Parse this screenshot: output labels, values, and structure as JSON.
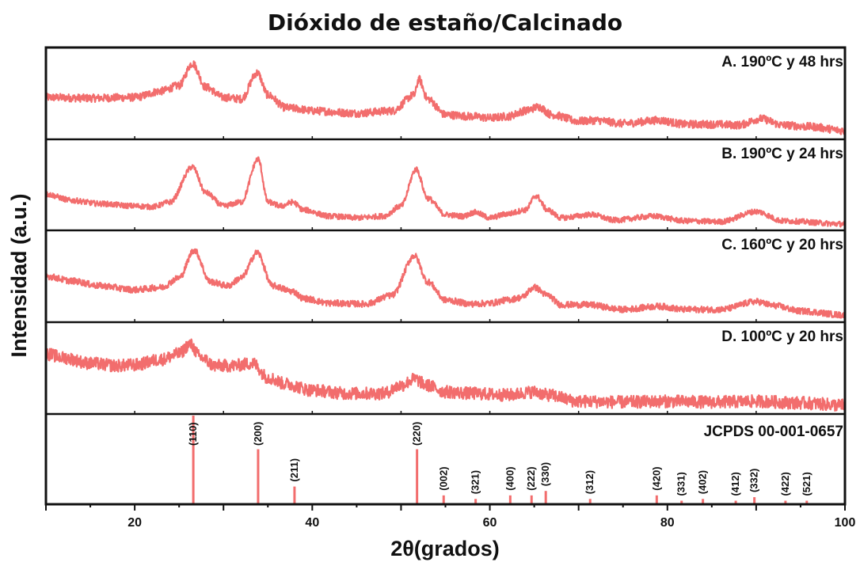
{
  "chart_data": {
    "type": "line",
    "title": "Dióxido de estaño/Calcinado",
    "xlabel": "2θ(grados)",
    "ylabel": "Intensidad (a.u.)",
    "xlim": [
      10,
      100
    ],
    "xticks": [
      20,
      40,
      60,
      80,
      100
    ],
    "xtick_labels": [
      "20",
      "40",
      "60",
      "80",
      "100"
    ],
    "color": "#f26d6d",
    "series": [
      {
        "name": "A. 190ºC y 48 hrs",
        "noise": 0.05,
        "points": [
          [
            10,
            0.47
          ],
          [
            15,
            0.46
          ],
          [
            20,
            0.47
          ],
          [
            23,
            0.55
          ],
          [
            25,
            0.62
          ],
          [
            26.5,
            0.9
          ],
          [
            28,
            0.6
          ],
          [
            30,
            0.47
          ],
          [
            32,
            0.45
          ],
          [
            33.8,
            0.78
          ],
          [
            35,
            0.5
          ],
          [
            37,
            0.34
          ],
          [
            38,
            0.33
          ],
          [
            40,
            0.3
          ],
          [
            45,
            0.27
          ],
          [
            49,
            0.3
          ],
          [
            51.5,
            0.5
          ],
          [
            52,
            0.7
          ],
          [
            53,
            0.45
          ],
          [
            55,
            0.25
          ],
          [
            58,
            0.23
          ],
          [
            60,
            0.21
          ],
          [
            62,
            0.23
          ],
          [
            64,
            0.3
          ],
          [
            65.5,
            0.35
          ],
          [
            67,
            0.25
          ],
          [
            70,
            0.17
          ],
          [
            72,
            0.18
          ],
          [
            75,
            0.14
          ],
          [
            79,
            0.18
          ],
          [
            82,
            0.13
          ],
          [
            85,
            0.13
          ],
          [
            88,
            0.12
          ],
          [
            90.5,
            0.2
          ],
          [
            93,
            0.12
          ],
          [
            96,
            0.1
          ],
          [
            100,
            0.05
          ]
        ]
      },
      {
        "name": "B. 190ºC y 24 hrs",
        "noise": 0.035,
        "points": [
          [
            10,
            0.4
          ],
          [
            13,
            0.32
          ],
          [
            16,
            0.28
          ],
          [
            20,
            0.25
          ],
          [
            22,
            0.24
          ],
          [
            24,
            0.3
          ],
          [
            26.5,
            0.75
          ],
          [
            28,
            0.42
          ],
          [
            30,
            0.25
          ],
          [
            32,
            0.3
          ],
          [
            33.9,
            0.85
          ],
          [
            35,
            0.3
          ],
          [
            36.5,
            0.25
          ],
          [
            37.8,
            0.3
          ],
          [
            39,
            0.2
          ],
          [
            42,
            0.12
          ],
          [
            45,
            0.1
          ],
          [
            48,
            0.12
          ],
          [
            50,
            0.25
          ],
          [
            51.7,
            0.72
          ],
          [
            53,
            0.35
          ],
          [
            55,
            0.14
          ],
          [
            57,
            0.12
          ],
          [
            58.3,
            0.17
          ],
          [
            60,
            0.1
          ],
          [
            62,
            0.15
          ],
          [
            64,
            0.2
          ],
          [
            65.2,
            0.38
          ],
          [
            66.5,
            0.2
          ],
          [
            68,
            0.1
          ],
          [
            71.5,
            0.14
          ],
          [
            74,
            0.07
          ],
          [
            78.5,
            0.12
          ],
          [
            82,
            0.06
          ],
          [
            86,
            0.05
          ],
          [
            90,
            0.18
          ],
          [
            93,
            0.06
          ],
          [
            100,
            0.02
          ]
        ]
      },
      {
        "name": "C. 160ºC y 20 hrs",
        "noise": 0.04,
        "points": [
          [
            10,
            0.52
          ],
          [
            13,
            0.46
          ],
          [
            16,
            0.4
          ],
          [
            20,
            0.35
          ],
          [
            23,
            0.38
          ],
          [
            25,
            0.5
          ],
          [
            26.7,
            0.85
          ],
          [
            28.5,
            0.45
          ],
          [
            30.5,
            0.4
          ],
          [
            32,
            0.5
          ],
          [
            33.8,
            0.82
          ],
          [
            35.5,
            0.4
          ],
          [
            37.8,
            0.33
          ],
          [
            39,
            0.24
          ],
          [
            42,
            0.18
          ],
          [
            46,
            0.17
          ],
          [
            49,
            0.28
          ],
          [
            51.5,
            0.78
          ],
          [
            53,
            0.45
          ],
          [
            55,
            0.22
          ],
          [
            58,
            0.17
          ],
          [
            60,
            0.18
          ],
          [
            62,
            0.22
          ],
          [
            63.5,
            0.25
          ],
          [
            65,
            0.38
          ],
          [
            66.5,
            0.28
          ],
          [
            68,
            0.16
          ],
          [
            71,
            0.16
          ],
          [
            75,
            0.1
          ],
          [
            79,
            0.14
          ],
          [
            82,
            0.1
          ],
          [
            86,
            0.1
          ],
          [
            90,
            0.2
          ],
          [
            92,
            0.15
          ],
          [
            95,
            0.08
          ],
          [
            100,
            0.03
          ]
        ]
      },
      {
        "name": "D. 100ºC y 20 hrs",
        "noise": 0.08,
        "points": [
          [
            10,
            0.7
          ],
          [
            12,
            0.65
          ],
          [
            15,
            0.58
          ],
          [
            18,
            0.55
          ],
          [
            20,
            0.56
          ],
          [
            23,
            0.63
          ],
          [
            25,
            0.7
          ],
          [
            26.2,
            0.82
          ],
          [
            27.5,
            0.65
          ],
          [
            29,
            0.55
          ],
          [
            31,
            0.55
          ],
          [
            33.3,
            0.58
          ],
          [
            35,
            0.4
          ],
          [
            37,
            0.32
          ],
          [
            40,
            0.24
          ],
          [
            44,
            0.2
          ],
          [
            48,
            0.2
          ],
          [
            50,
            0.3
          ],
          [
            51.5,
            0.38
          ],
          [
            53,
            0.3
          ],
          [
            55,
            0.22
          ],
          [
            58,
            0.2
          ],
          [
            62,
            0.18
          ],
          [
            65,
            0.22
          ],
          [
            66.5,
            0.18
          ],
          [
            70,
            0.1
          ],
          [
            75,
            0.09
          ],
          [
            80,
            0.1
          ],
          [
            85,
            0.09
          ],
          [
            90,
            0.1
          ],
          [
            95,
            0.08
          ],
          [
            100,
            0.05
          ]
        ]
      }
    ],
    "reference": {
      "name": "JCPDS 00-001-0657",
      "peaks": [
        {
          "x": 26.6,
          "h": 1.0,
          "hkl": "(110)"
        },
        {
          "x": 33.9,
          "h": 0.62,
          "hkl": "(200)"
        },
        {
          "x": 38.0,
          "h": 0.2,
          "hkl": "(211)"
        },
        {
          "x": 51.8,
          "h": 0.62,
          "hkl": "(220)"
        },
        {
          "x": 54.8,
          "h": 0.1,
          "hkl": "(002)"
        },
        {
          "x": 58.4,
          "h": 0.06,
          "hkl": "(321)"
        },
        {
          "x": 62.3,
          "h": 0.1,
          "hkl": "(400)"
        },
        {
          "x": 64.7,
          "h": 0.1,
          "hkl": "(222)"
        },
        {
          "x": 66.3,
          "h": 0.15,
          "hkl": "(330)"
        },
        {
          "x": 71.3,
          "h": 0.06,
          "hkl": "(312)"
        },
        {
          "x": 78.8,
          "h": 0.1,
          "hkl": "(420)"
        },
        {
          "x": 81.6,
          "h": 0.04,
          "hkl": "(331)"
        },
        {
          "x": 84.0,
          "h": 0.06,
          "hkl": "(402)"
        },
        {
          "x": 87.7,
          "h": 0.04,
          "hkl": "(412)"
        },
        {
          "x": 89.8,
          "h": 0.08,
          "hkl": "(332)"
        },
        {
          "x": 93.3,
          "h": 0.04,
          "hkl": "(422)"
        },
        {
          "x": 95.7,
          "h": 0.04,
          "hkl": "(521)"
        }
      ]
    }
  }
}
